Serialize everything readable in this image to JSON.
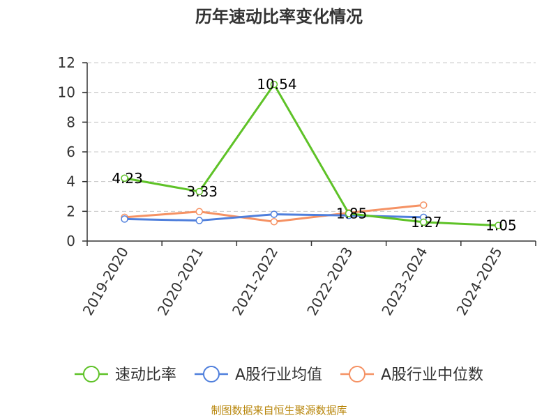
{
  "chart_data": {
    "type": "line",
    "title": "历年速动比率变化情况",
    "categories": [
      "2019-2020",
      "2020-2021",
      "2021-2022",
      "2022-2023",
      "2023-2024",
      "2024-2025"
    ],
    "ylim": [
      0,
      12
    ],
    "yticks": [
      "0",
      "2",
      "4",
      "6",
      "8",
      "10",
      "12"
    ],
    "grid": true,
    "legend_position": "bottom",
    "series": [
      {
        "name": "速动比率",
        "color": "#5ec227",
        "values": [
          4.23,
          3.33,
          10.54,
          1.85,
          1.27,
          1.05
        ],
        "labels": [
          "4.23",
          "3.33",
          "10.54",
          "1.85",
          "1.27",
          "1.05"
        ]
      },
      {
        "name": "A股行业均值",
        "color": "#4f7fdc",
        "values": [
          1.48,
          1.38,
          1.8,
          1.72,
          1.6,
          null
        ]
      },
      {
        "name": "A股行业中位数",
        "color": "#f59264",
        "values": [
          1.6,
          1.98,
          1.3,
          1.9,
          2.42,
          null
        ]
      }
    ],
    "source": "制图数据来自恒生聚源数据库"
  }
}
